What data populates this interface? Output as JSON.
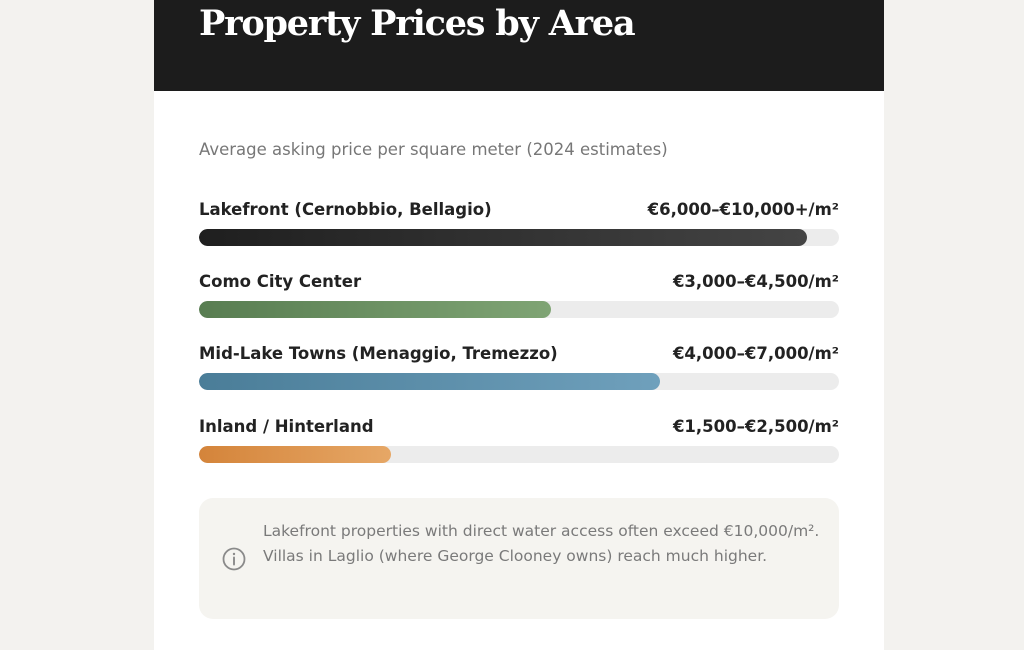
{
  "header": {
    "title": "Property Prices by Area"
  },
  "chart_data": {
    "type": "bar",
    "subtitle": "Average asking price per square meter (2024 estimates)",
    "scale_max": 10500,
    "series": [
      {
        "label": "Lakefront (Cernobbio, Bellagio)",
        "range": "€6,000–€10,000+/m²",
        "fill_fraction": 0.95,
        "color_start": "#1f1f1f",
        "color_end": "#444444"
      },
      {
        "label": "Como City Center",
        "range": "€3,000–€4,500/m²",
        "fill_fraction": 0.55,
        "color_start": "#587d51",
        "color_end": "#7fa474"
      },
      {
        "label": "Mid-Lake Towns (Menaggio, Tremezzo)",
        "range": "€4,000–€7,000/m²",
        "fill_fraction": 0.72,
        "color_start": "#4a7d98",
        "color_end": "#6fa0bc"
      },
      {
        "label": "Inland / Hinterland",
        "range": "€1,500–€2,500/m²",
        "fill_fraction": 0.3,
        "color_start": "#d4843a",
        "color_end": "#e6a766"
      }
    ]
  },
  "note": {
    "icon": "info-icon",
    "text": "Lakefront properties with direct water access often exceed €10,000/m². Villas in Laglio (where George Clooney owns) reach much higher."
  }
}
